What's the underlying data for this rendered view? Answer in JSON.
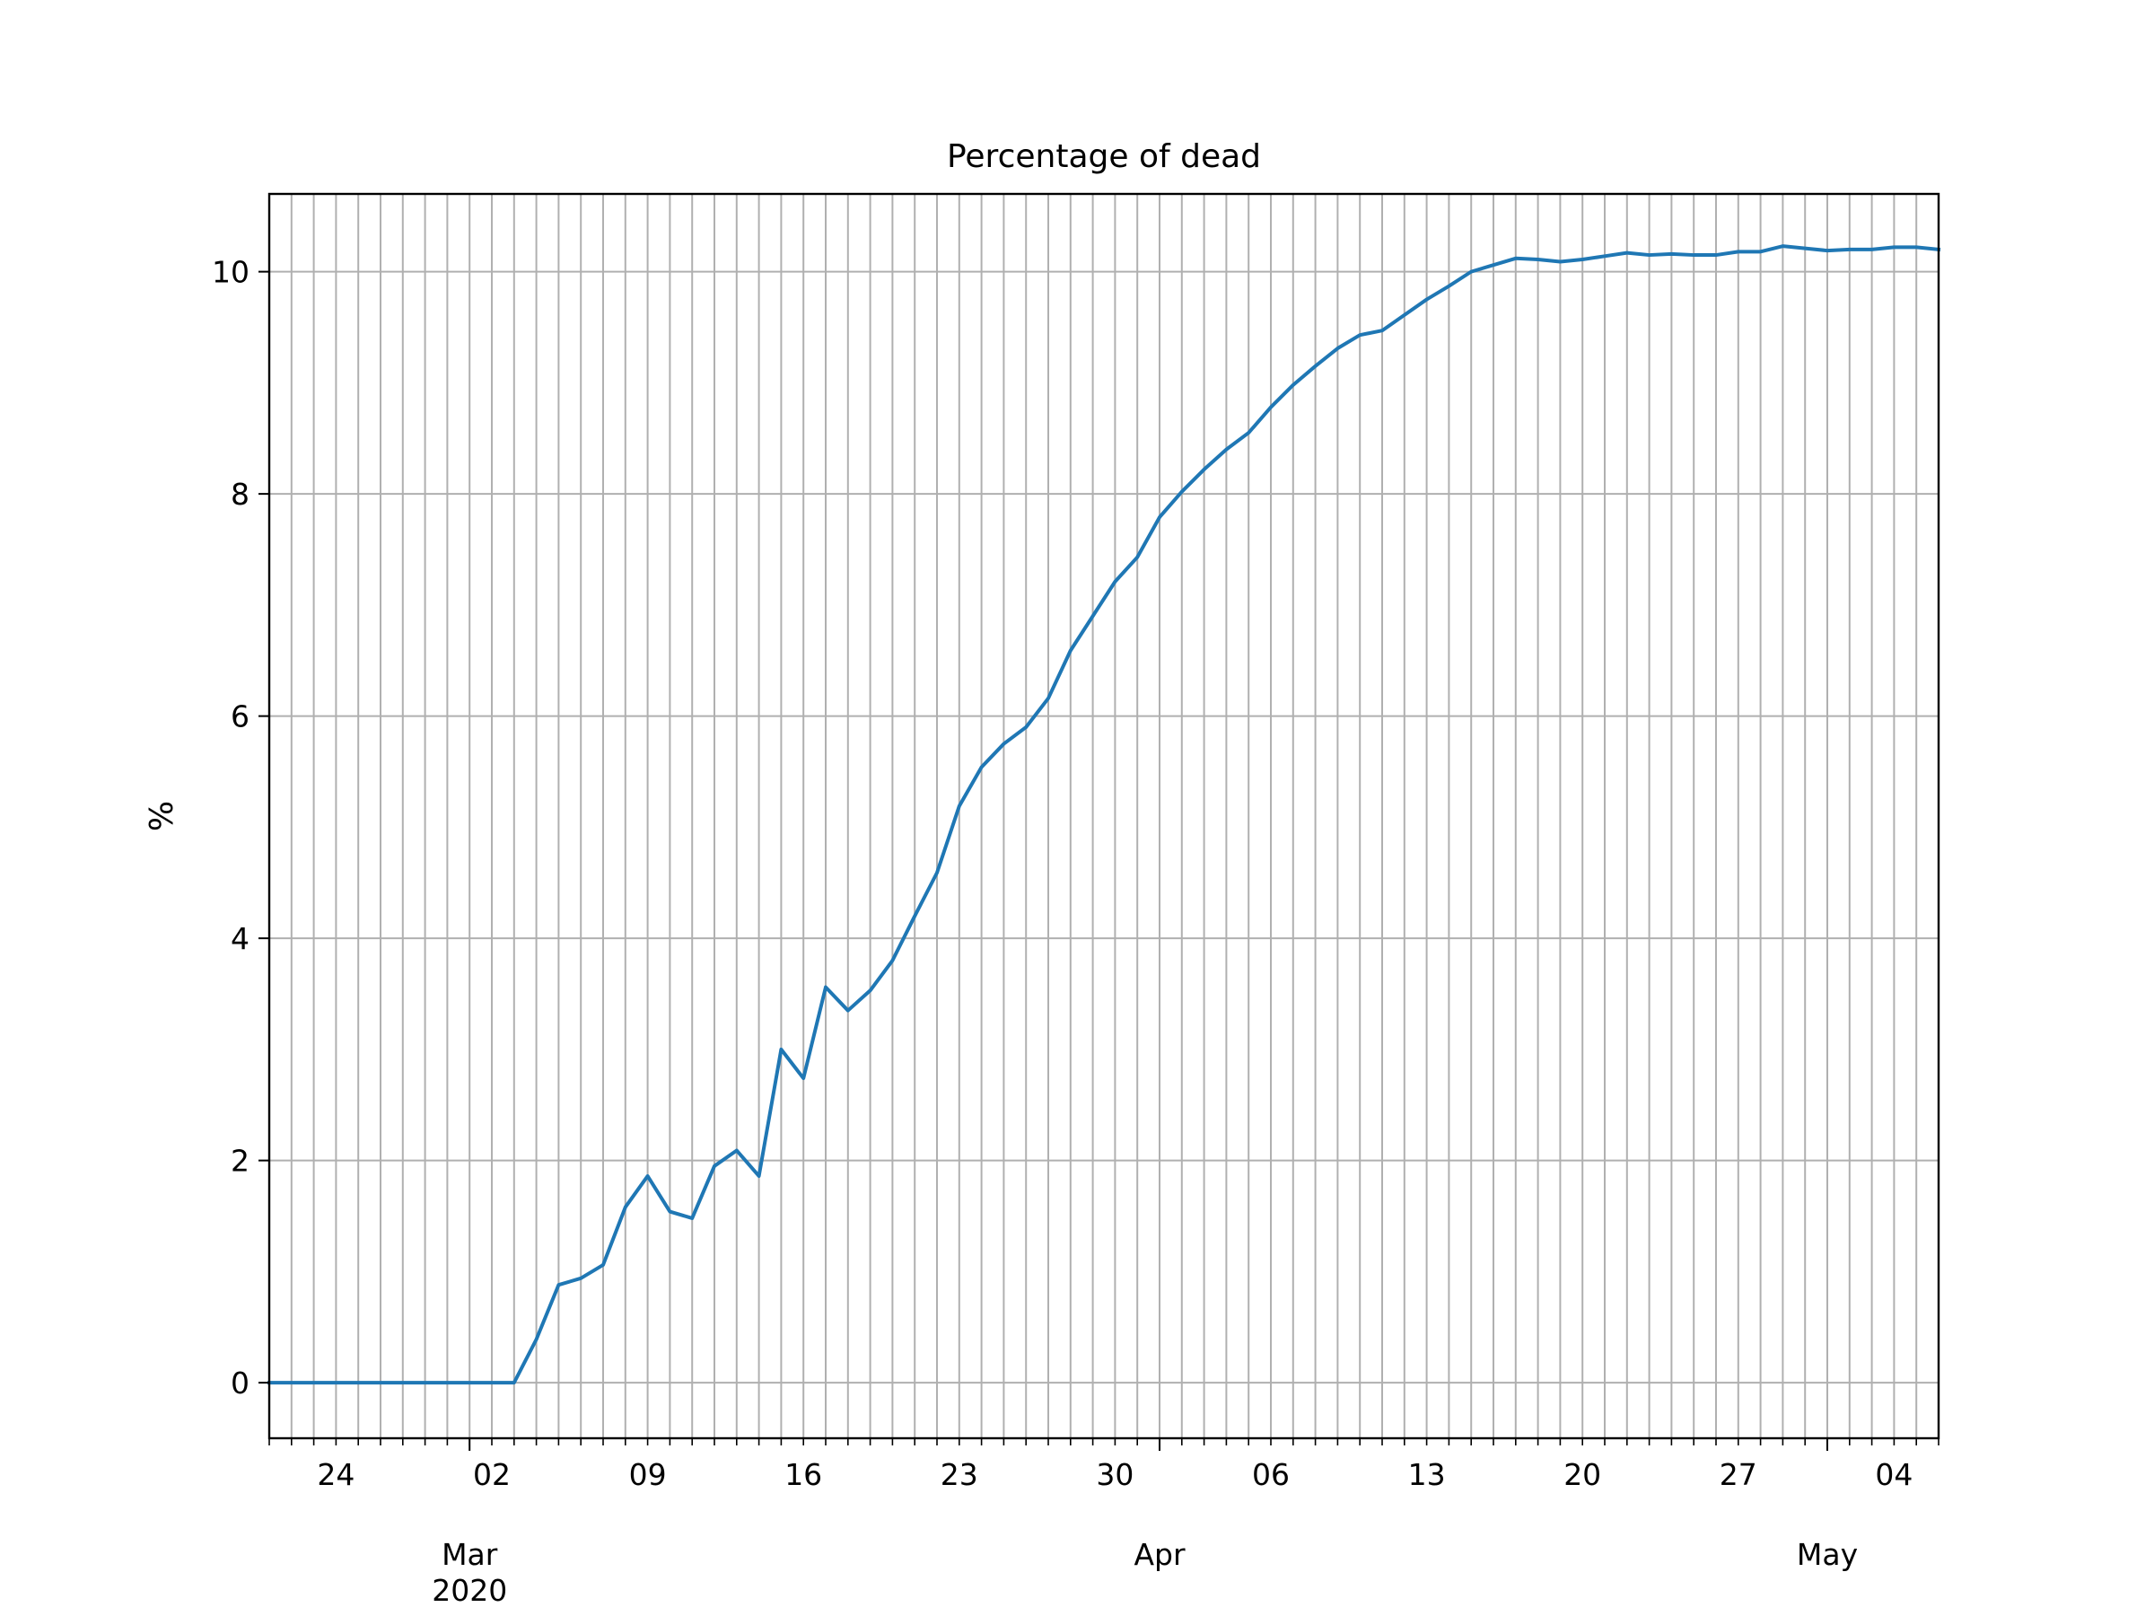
{
  "chart_data": {
    "type": "line",
    "title": "Percentage of dead",
    "xlabel": "",
    "ylabel": "%",
    "grid": true,
    "x_start": "2020-02-21",
    "x_end": "2020-05-06",
    "ylim": [
      -0.5,
      10.7
    ],
    "y_ticks": [
      0,
      2,
      4,
      6,
      8,
      10
    ],
    "x_major_ticks": [
      {
        "date": "2020-02-24",
        "label": "24"
      },
      {
        "date": "2020-03-02",
        "label": "02"
      },
      {
        "date": "2020-03-09",
        "label": "09"
      },
      {
        "date": "2020-03-16",
        "label": "16"
      },
      {
        "date": "2020-03-23",
        "label": "23"
      },
      {
        "date": "2020-03-30",
        "label": "30"
      },
      {
        "date": "2020-04-06",
        "label": "06"
      },
      {
        "date": "2020-04-13",
        "label": "13"
      },
      {
        "date": "2020-04-20",
        "label": "20"
      },
      {
        "date": "2020-04-27",
        "label": "27"
      },
      {
        "date": "2020-05-04",
        "label": "04"
      }
    ],
    "x_month_labels": [
      {
        "date": "2020-03-01",
        "label": "Mar",
        "sublabel": "2020"
      },
      {
        "date": "2020-04-01",
        "label": "Apr",
        "sublabel": ""
      },
      {
        "date": "2020-05-01",
        "label": "May",
        "sublabel": ""
      }
    ],
    "series_color": "#1f77b4",
    "series": [
      {
        "name": "",
        "points": [
          [
            "2020-02-21",
            0
          ],
          [
            "2020-02-22",
            0
          ],
          [
            "2020-02-23",
            0
          ],
          [
            "2020-02-24",
            0
          ],
          [
            "2020-02-25",
            0
          ],
          [
            "2020-02-26",
            0
          ],
          [
            "2020-02-27",
            0
          ],
          [
            "2020-02-28",
            0
          ],
          [
            "2020-02-29",
            0
          ],
          [
            "2020-03-01",
            0
          ],
          [
            "2020-03-02",
            0
          ],
          [
            "2020-03-03",
            0
          ],
          [
            "2020-03-04",
            0.39
          ],
          [
            "2020-03-05",
            0.88
          ],
          [
            "2020-03-06",
            0.94
          ],
          [
            "2020-03-07",
            1.06
          ],
          [
            "2020-03-08",
            1.58
          ],
          [
            "2020-03-09",
            1.86
          ],
          [
            "2020-03-10",
            1.54
          ],
          [
            "2020-03-11",
            1.48
          ],
          [
            "2020-03-12",
            1.95
          ],
          [
            "2020-03-13",
            2.09
          ],
          [
            "2020-03-14",
            1.86
          ],
          [
            "2020-03-15",
            3.0
          ],
          [
            "2020-03-16",
            2.74
          ],
          [
            "2020-03-17",
            3.56
          ],
          [
            "2020-03-18",
            3.35
          ],
          [
            "2020-03-19",
            3.53
          ],
          [
            "2020-03-20",
            3.8
          ],
          [
            "2020-03-21",
            4.2
          ],
          [
            "2020-03-22",
            4.59
          ],
          [
            "2020-03-23",
            5.19
          ],
          [
            "2020-03-24",
            5.54
          ],
          [
            "2020-03-25",
            5.75
          ],
          [
            "2020-03-26",
            5.9
          ],
          [
            "2020-03-27",
            6.16
          ],
          [
            "2020-03-28",
            6.59
          ],
          [
            "2020-03-29",
            6.9
          ],
          [
            "2020-03-30",
            7.21
          ],
          [
            "2020-03-31",
            7.43
          ],
          [
            "2020-04-01",
            7.79
          ],
          [
            "2020-04-02",
            8.02
          ],
          [
            "2020-04-03",
            8.22
          ],
          [
            "2020-04-04",
            8.4
          ],
          [
            "2020-04-05",
            8.55
          ],
          [
            "2020-04-06",
            8.78
          ],
          [
            "2020-04-07",
            8.98
          ],
          [
            "2020-04-08",
            9.15
          ],
          [
            "2020-04-09",
            9.31
          ],
          [
            "2020-04-10",
            9.43
          ],
          [
            "2020-04-11",
            9.47
          ],
          [
            "2020-04-12",
            9.61
          ],
          [
            "2020-04-13",
            9.75
          ],
          [
            "2020-04-14",
            9.87
          ],
          [
            "2020-04-15",
            10.0
          ],
          [
            "2020-04-16",
            10.06
          ],
          [
            "2020-04-17",
            10.12
          ],
          [
            "2020-04-18",
            10.11
          ],
          [
            "2020-04-19",
            10.09
          ],
          [
            "2020-04-20",
            10.11
          ],
          [
            "2020-04-21",
            10.14
          ],
          [
            "2020-04-22",
            10.17
          ],
          [
            "2020-04-23",
            10.15
          ],
          [
            "2020-04-24",
            10.16
          ],
          [
            "2020-04-25",
            10.15
          ],
          [
            "2020-04-26",
            10.15
          ],
          [
            "2020-04-27",
            10.18
          ],
          [
            "2020-04-28",
            10.18
          ],
          [
            "2020-04-29",
            10.23
          ],
          [
            "2020-04-30",
            10.21
          ],
          [
            "2020-05-01",
            10.19
          ],
          [
            "2020-05-02",
            10.2
          ],
          [
            "2020-05-03",
            10.2
          ],
          [
            "2020-05-04",
            10.22
          ],
          [
            "2020-05-05",
            10.22
          ],
          [
            "2020-05-06",
            10.2
          ]
        ]
      }
    ]
  }
}
